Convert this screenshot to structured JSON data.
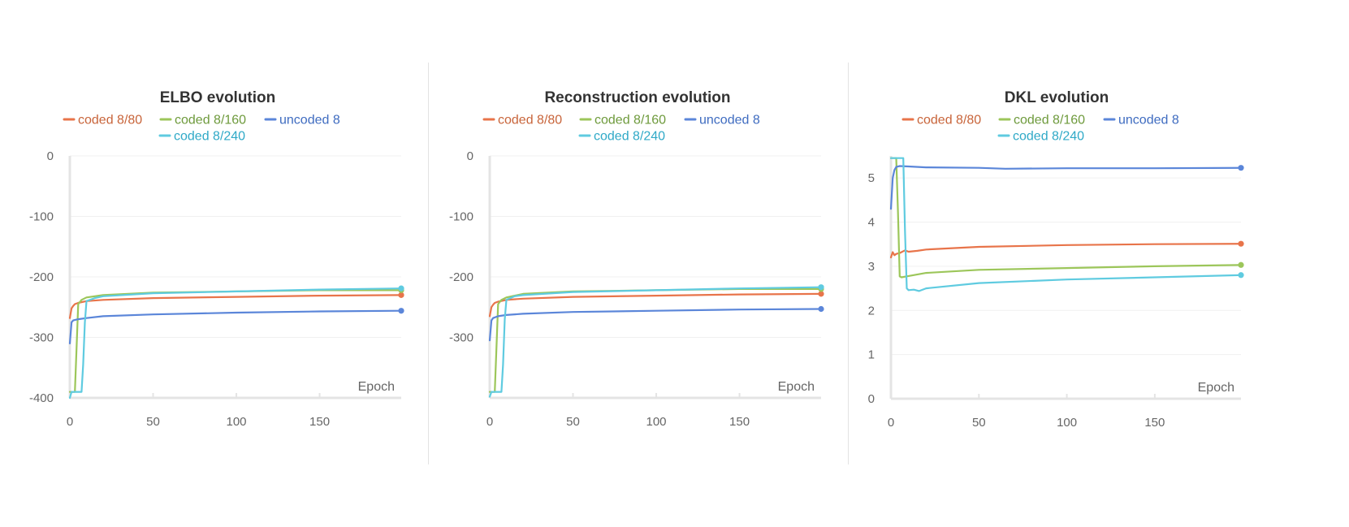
{
  "colors": {
    "coded_8_80": "#e8744a",
    "coded_8_160": "#9cc65a",
    "uncoded_8": "#5b86d9",
    "coded_8_240": "#5fcbe0",
    "legend_coded_8_80": "#c8643a",
    "legend_coded_8_160": "#6e9a3c",
    "legend_uncoded_8": "#3f6cc0",
    "legend_coded_8_240": "#2fa9c7",
    "axis": "#e4e4e4",
    "grid": "#f0f0f0"
  },
  "chart_data": [
    {
      "type": "line",
      "title": "ELBO evolution",
      "xlabel": "Epoch",
      "ylabel": "",
      "xlim": [
        0,
        199
      ],
      "ylim": [
        -400,
        0
      ],
      "xticks": [
        0,
        50,
        100,
        150
      ],
      "xtick_labels": [
        "0",
        "50",
        "100",
        "150"
      ],
      "yticks": [
        0,
        -100,
        -200,
        -300,
        -400
      ],
      "ytick_labels": [
        "0",
        "-100",
        "-200",
        "-300",
        "-400"
      ],
      "legend": [
        "coded 8/80",
        "coded 8/160",
        "uncoded 8",
        "coded 8/240"
      ],
      "series": [
        {
          "name": "coded 8/80",
          "key": "coded_8_80",
          "x": [
            0,
            1,
            2,
            3,
            5,
            10,
            20,
            50,
            100,
            150,
            199
          ],
          "y": [
            -268,
            -252,
            -248,
            -245,
            -243,
            -240,
            -238,
            -235,
            -233,
            -231,
            -230
          ]
        },
        {
          "name": "coded 8/160",
          "key": "coded_8_160",
          "x": [
            0,
            1,
            2,
            3,
            4,
            5,
            7,
            10,
            20,
            50,
            100,
            150,
            199
          ],
          "y": [
            -390,
            -390,
            -390,
            -390,
            -320,
            -245,
            -238,
            -234,
            -230,
            -226,
            -224,
            -222,
            -222
          ]
        },
        {
          "name": "uncoded 8",
          "key": "uncoded_8",
          "x": [
            0,
            1,
            2,
            5,
            10,
            20,
            50,
            100,
            150,
            199
          ],
          "y": [
            -310,
            -275,
            -272,
            -270,
            -268,
            -265,
            -262,
            -259,
            -257,
            -256
          ]
        },
        {
          "name": "coded 8/240",
          "key": "coded_8_240",
          "x": [
            0,
            1,
            2,
            6,
            7,
            8,
            9,
            10,
            15,
            20,
            50,
            100,
            150,
            199
          ],
          "y": [
            -400,
            -390,
            -390,
            -390,
            -390,
            -345,
            -275,
            -240,
            -235,
            -232,
            -227,
            -224,
            -221,
            -219
          ]
        }
      ]
    },
    {
      "type": "line",
      "title": "Reconstruction evolution",
      "xlabel": "Epoch",
      "ylabel": "",
      "xlim": [
        0,
        199
      ],
      "ylim": [
        -400,
        0
      ],
      "xticks": [
        0,
        50,
        100,
        150
      ],
      "xtick_labels": [
        "0",
        "50",
        "100",
        "150"
      ],
      "yticks": [
        0,
        -100,
        -200,
        -300
      ],
      "ytick_labels": [
        "0",
        "-100",
        "-200",
        "-300"
      ],
      "legend": [
        "coded 8/80",
        "coded 8/160",
        "uncoded 8",
        "coded 8/240"
      ],
      "series": [
        {
          "name": "coded 8/80",
          "key": "coded_8_80",
          "x": [
            0,
            1,
            2,
            3,
            5,
            10,
            20,
            50,
            100,
            150,
            199
          ],
          "y": [
            -265,
            -250,
            -246,
            -243,
            -241,
            -238,
            -236,
            -233,
            -231,
            -229,
            -228
          ]
        },
        {
          "name": "coded 8/160",
          "key": "coded_8_160",
          "x": [
            0,
            1,
            2,
            3,
            4,
            5,
            7,
            10,
            20,
            50,
            100,
            150,
            199
          ],
          "y": [
            -390,
            -390,
            -390,
            -390,
            -320,
            -245,
            -238,
            -234,
            -228,
            -224,
            -222,
            -220,
            -220
          ]
        },
        {
          "name": "uncoded 8",
          "key": "uncoded_8",
          "x": [
            0,
            1,
            2,
            5,
            10,
            20,
            50,
            100,
            150,
            199
          ],
          "y": [
            -305,
            -272,
            -268,
            -265,
            -263,
            -261,
            -258,
            -256,
            -254,
            -253
          ]
        },
        {
          "name": "coded 8/240",
          "key": "coded_8_240",
          "x": [
            0,
            1,
            2,
            6,
            7,
            8,
            9,
            10,
            15,
            20,
            50,
            100,
            150,
            199
          ],
          "y": [
            -398,
            -390,
            -390,
            -390,
            -390,
            -345,
            -270,
            -238,
            -232,
            -230,
            -225,
            -222,
            -219,
            -217
          ]
        }
      ]
    },
    {
      "type": "line",
      "title": "DKL evolution",
      "xlabel": "Epoch",
      "ylabel": "",
      "xlim": [
        0,
        199
      ],
      "ylim": [
        0,
        5.5
      ],
      "xticks": [
        0,
        50,
        100,
        150
      ],
      "xtick_labels": [
        "0",
        "50",
        "100",
        "150"
      ],
      "yticks": [
        0,
        1,
        2,
        3,
        4,
        5
      ],
      "ytick_labels": [
        "0",
        "1",
        "2",
        "3",
        "4",
        "5"
      ],
      "legend": [
        "coded 8/80",
        "coded 8/160",
        "uncoded 8",
        "coded 8/240"
      ],
      "series": [
        {
          "name": "coded 8/80",
          "key": "coded_8_80",
          "x": [
            0,
            1,
            2,
            3,
            5,
            8,
            10,
            15,
            20,
            50,
            100,
            150,
            199
          ],
          "y": [
            3.2,
            3.32,
            3.25,
            3.28,
            3.3,
            3.36,
            3.33,
            3.35,
            3.38,
            3.44,
            3.48,
            3.5,
            3.51
          ]
        },
        {
          "name": "coded 8/160",
          "key": "coded_8_160",
          "x": [
            0,
            1,
            2,
            3,
            4,
            5,
            6,
            10,
            20,
            50,
            100,
            150,
            199
          ],
          "y": [
            5.45,
            5.45,
            5.45,
            5.45,
            4.2,
            2.77,
            2.75,
            2.78,
            2.85,
            2.92,
            2.96,
            3.0,
            3.03
          ]
        },
        {
          "name": "uncoded 8",
          "key": "uncoded_8",
          "x": [
            0,
            1,
            2,
            3,
            5,
            10,
            20,
            50,
            65,
            100,
            150,
            199
          ],
          "y": [
            4.3,
            5.0,
            5.18,
            5.25,
            5.27,
            5.26,
            5.24,
            5.23,
            5.21,
            5.22,
            5.22,
            5.23
          ]
        },
        {
          "name": "coded 8/240",
          "key": "coded_8_240",
          "x": [
            0,
            1,
            2,
            6,
            7,
            8,
            9,
            10,
            13,
            16,
            20,
            50,
            100,
            150,
            199
          ],
          "y": [
            5.45,
            5.45,
            5.45,
            5.45,
            5.45,
            3.8,
            2.5,
            2.46,
            2.47,
            2.44,
            2.5,
            2.62,
            2.7,
            2.75,
            2.8
          ]
        }
      ]
    }
  ]
}
